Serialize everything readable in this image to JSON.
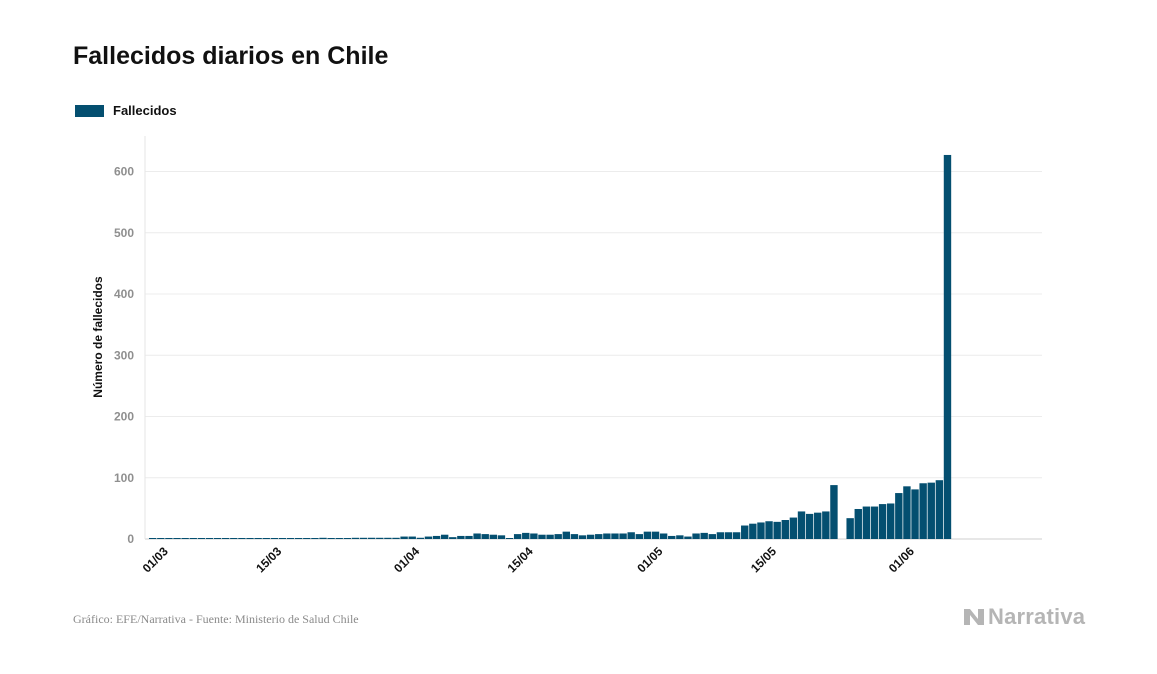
{
  "header": {
    "title": "Fallecidos diarios en Chile"
  },
  "legend": {
    "label": "Fallecidos",
    "color": "#044f70"
  },
  "footer": {
    "source": "Gráfico: EFE/Narrativa - Fuente: Ministerio de Salud Chile",
    "logo_text": "Narrativa"
  },
  "chart_data": {
    "type": "bar",
    "title": "Fallecidos diarios en Chile",
    "xlabel": "",
    "ylabel": "Número de fallecidos",
    "ylim": [
      0,
      660
    ],
    "yticks": [
      0,
      100,
      200,
      300,
      400,
      500,
      600
    ],
    "grid": "horizontal",
    "legend_position": "top-left",
    "series": [
      {
        "name": "Fallecidos",
        "color": "#044f70",
        "values": [
          0,
          0,
          0,
          0,
          0,
          0,
          0,
          0,
          0,
          0,
          0,
          0,
          0,
          0,
          0,
          0,
          0,
          0,
          0,
          0,
          0,
          1,
          0,
          0,
          0,
          1,
          1,
          2,
          1,
          1,
          1,
          4,
          4,
          2,
          4,
          5,
          7,
          3,
          5,
          5,
          9,
          8,
          7,
          6,
          0,
          8,
          10,
          9,
          7,
          7,
          8,
          12,
          8,
          6,
          7,
          8,
          9,
          9,
          9,
          11,
          8,
          12,
          12,
          9,
          5,
          6,
          4,
          9,
          10,
          8,
          11,
          11,
          11,
          22,
          25,
          27,
          29,
          28,
          31,
          35,
          45,
          41,
          43,
          45,
          88,
          null,
          34,
          49,
          53,
          53,
          57,
          58,
          75,
          86,
          81,
          91,
          92,
          96,
          627
        ]
      }
    ],
    "x_start": "2020-03-01",
    "x_ticks": [
      {
        "label": "01/03",
        "date": "2020-03-01"
      },
      {
        "label": "15/03",
        "date": "2020-03-15"
      },
      {
        "label": "01/04",
        "date": "2020-04-01"
      },
      {
        "label": "15/04",
        "date": "2020-04-15"
      },
      {
        "label": "01/05",
        "date": "2020-05-01"
      },
      {
        "label": "15/05",
        "date": "2020-05-15"
      },
      {
        "label": "01/06",
        "date": "2020-06-01"
      }
    ]
  }
}
